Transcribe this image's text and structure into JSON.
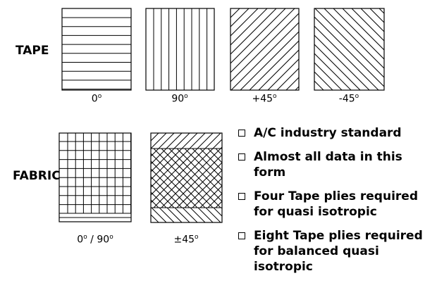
{
  "labels": {
    "tape": "TAPE",
    "fabric": "FABRIC"
  },
  "tape_samples": [
    {
      "angle": "0",
      "unit": "o",
      "pattern": "horizontal-lines"
    },
    {
      "angle": "90",
      "unit": "o",
      "pattern": "vertical-lines"
    },
    {
      "angle": "+45",
      "unit": "o",
      "pattern": "diagonal-lines-rising"
    },
    {
      "angle": "-45",
      "unit": "o",
      "pattern": "diagonal-lines-falling"
    }
  ],
  "fabric_samples": [
    {
      "angle": "0",
      "unit": "o",
      "separator": " / ",
      "angle2": "90",
      "unit2": "o",
      "pattern": "square-grid"
    },
    {
      "angle": "±45",
      "unit": "o",
      "pattern": "crosshatch-diagonal"
    }
  ],
  "bullets": [
    {
      "icon": "checkbox-bullet-icon",
      "text": "A/C industry standard"
    },
    {
      "icon": "checkbox-bullet-icon",
      "text": "Almost all data in this form"
    },
    {
      "icon": "checkbox-bullet-icon",
      "text": "Four Tape plies required for quasi isotropic"
    },
    {
      "icon": "checkbox-bullet-icon",
      "text": "Eight Tape plies required for balanced quasi isotropic"
    }
  ],
  "colors": {
    "line": "#000000",
    "background": "#ffffff"
  }
}
